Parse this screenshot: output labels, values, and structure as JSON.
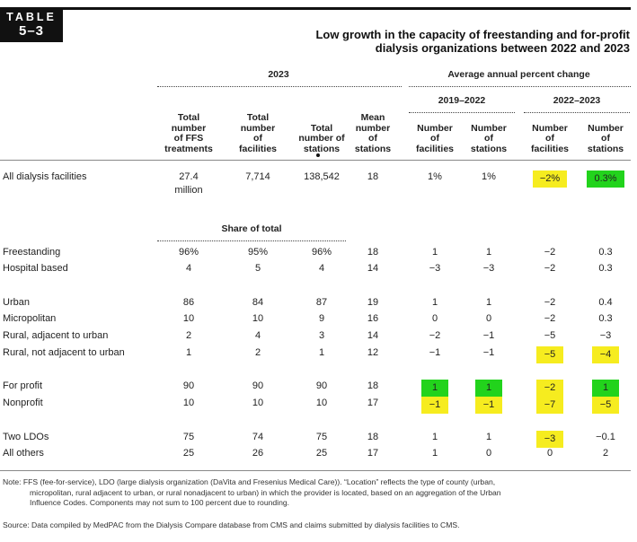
{
  "badge": {
    "line1": "TABLE",
    "line2": "5–3"
  },
  "title": {
    "line1": "Low growth in the capacity of freestanding and for-profit",
    "line2": "dialysis organizations between 2022 and 2023"
  },
  "groups": {
    "year": "2023",
    "avg_change": "Average annual percent change",
    "period1": "2019–2022",
    "period2": "2022–2023",
    "share": "Share of total"
  },
  "columns": [
    [
      "Total",
      "number",
      "of FFS",
      "treatments"
    ],
    [
      "Total",
      "number",
      "of",
      "facilities"
    ],
    [
      "Total",
      "number of",
      "stations"
    ],
    [
      "Mean",
      "number",
      "of",
      "stations"
    ],
    [
      "Number",
      "of",
      "facilities"
    ],
    [
      "Number",
      "of",
      "stations"
    ],
    [
      "Number",
      "of",
      "facilities"
    ],
    [
      "Number",
      "of",
      "stations"
    ]
  ],
  "rows": [
    {
      "label": "All dialysis facilities",
      "cells": [
        "27.4",
        "7,714",
        "138,542",
        "18",
        "1%",
        "1%",
        "−2%",
        "0.3%"
      ],
      "cell0_line2": "million",
      "hl": [
        null,
        null,
        null,
        null,
        null,
        null,
        "yellow",
        "green"
      ]
    },
    {
      "label": "Freestanding",
      "cells": [
        "96%",
        "95%",
        "96%",
        "18",
        "1",
        "1",
        "−2",
        "0.3"
      ],
      "hl": [
        null,
        null,
        null,
        null,
        null,
        null,
        null,
        null
      ]
    },
    {
      "label": "Hospital based",
      "cells": [
        "4",
        "5",
        "4",
        "14",
        "−3",
        "−3",
        "−2",
        "0.3"
      ],
      "hl": [
        null,
        null,
        null,
        null,
        null,
        null,
        null,
        null
      ]
    },
    {
      "label": "Urban",
      "cells": [
        "86",
        "84",
        "87",
        "19",
        "1",
        "1",
        "−2",
        "0.4"
      ],
      "hl": [
        null,
        null,
        null,
        null,
        null,
        null,
        null,
        null
      ]
    },
    {
      "label": "Micropolitan",
      "cells": [
        "10",
        "10",
        "9",
        "16",
        "0",
        "0",
        "−2",
        "0.3"
      ],
      "hl": [
        null,
        null,
        null,
        null,
        null,
        null,
        null,
        null
      ]
    },
    {
      "label": "Rural, adjacent to urban",
      "cells": [
        "2",
        "4",
        "3",
        "14",
        "−2",
        "−1",
        "−5",
        "−3"
      ],
      "hl": [
        null,
        null,
        null,
        null,
        null,
        null,
        null,
        null
      ]
    },
    {
      "label": "Rural, not adjacent to urban",
      "cells": [
        "1",
        "2",
        "1",
        "12",
        "−1",
        "−1",
        "−5",
        "−4"
      ],
      "hl": [
        null,
        null,
        null,
        null,
        null,
        null,
        "yellow",
        "yellow"
      ]
    },
    {
      "label": "For profit",
      "cells": [
        "90",
        "90",
        "90",
        "18",
        "1",
        "1",
        "−2",
        "1"
      ],
      "hl": [
        null,
        null,
        null,
        null,
        "green",
        "green",
        "yellow",
        "green"
      ]
    },
    {
      "label": "Nonprofit",
      "cells": [
        "10",
        "10",
        "10",
        "17",
        "−1",
        "−1",
        "−7",
        "−5"
      ],
      "hl": [
        null,
        null,
        null,
        null,
        "yellow",
        "yellow",
        "yellow",
        "yellow"
      ]
    },
    {
      "label": "Two LDOs",
      "cells": [
        "75",
        "74",
        "75",
        "18",
        "1",
        "1",
        "−3",
        "−0.1"
      ],
      "hl": [
        null,
        null,
        null,
        null,
        null,
        null,
        "yellow",
        null
      ]
    },
    {
      "label": "All others",
      "cells": [
        "25",
        "26",
        "25",
        "17",
        "1",
        "0",
        "0",
        "2"
      ],
      "hl": [
        null,
        null,
        null,
        null,
        null,
        null,
        null,
        null
      ]
    }
  ],
  "note": {
    "line1": "Note:   FFS (fee-for-service), LDO (large dialysis organization (DaVita and Fresenius Medical Care)). “Location” reflects the type of county (urban,",
    "line2": "micropolitan, rural adjacent to urban, or rural nonadjacent to urban) in which the provider is located, based on an aggregation of the Urban",
    "line3": "Influence Codes. Components may not sum to 100 percent due to rounding."
  },
  "source": "Source: Data compiled by MedPAC from the Dialysis Compare database from CMS and claims submitted by dialysis facilities to CMS.",
  "colors": {
    "highlight_yellow": "#f6ec1f",
    "highlight_green": "#22d31c"
  }
}
